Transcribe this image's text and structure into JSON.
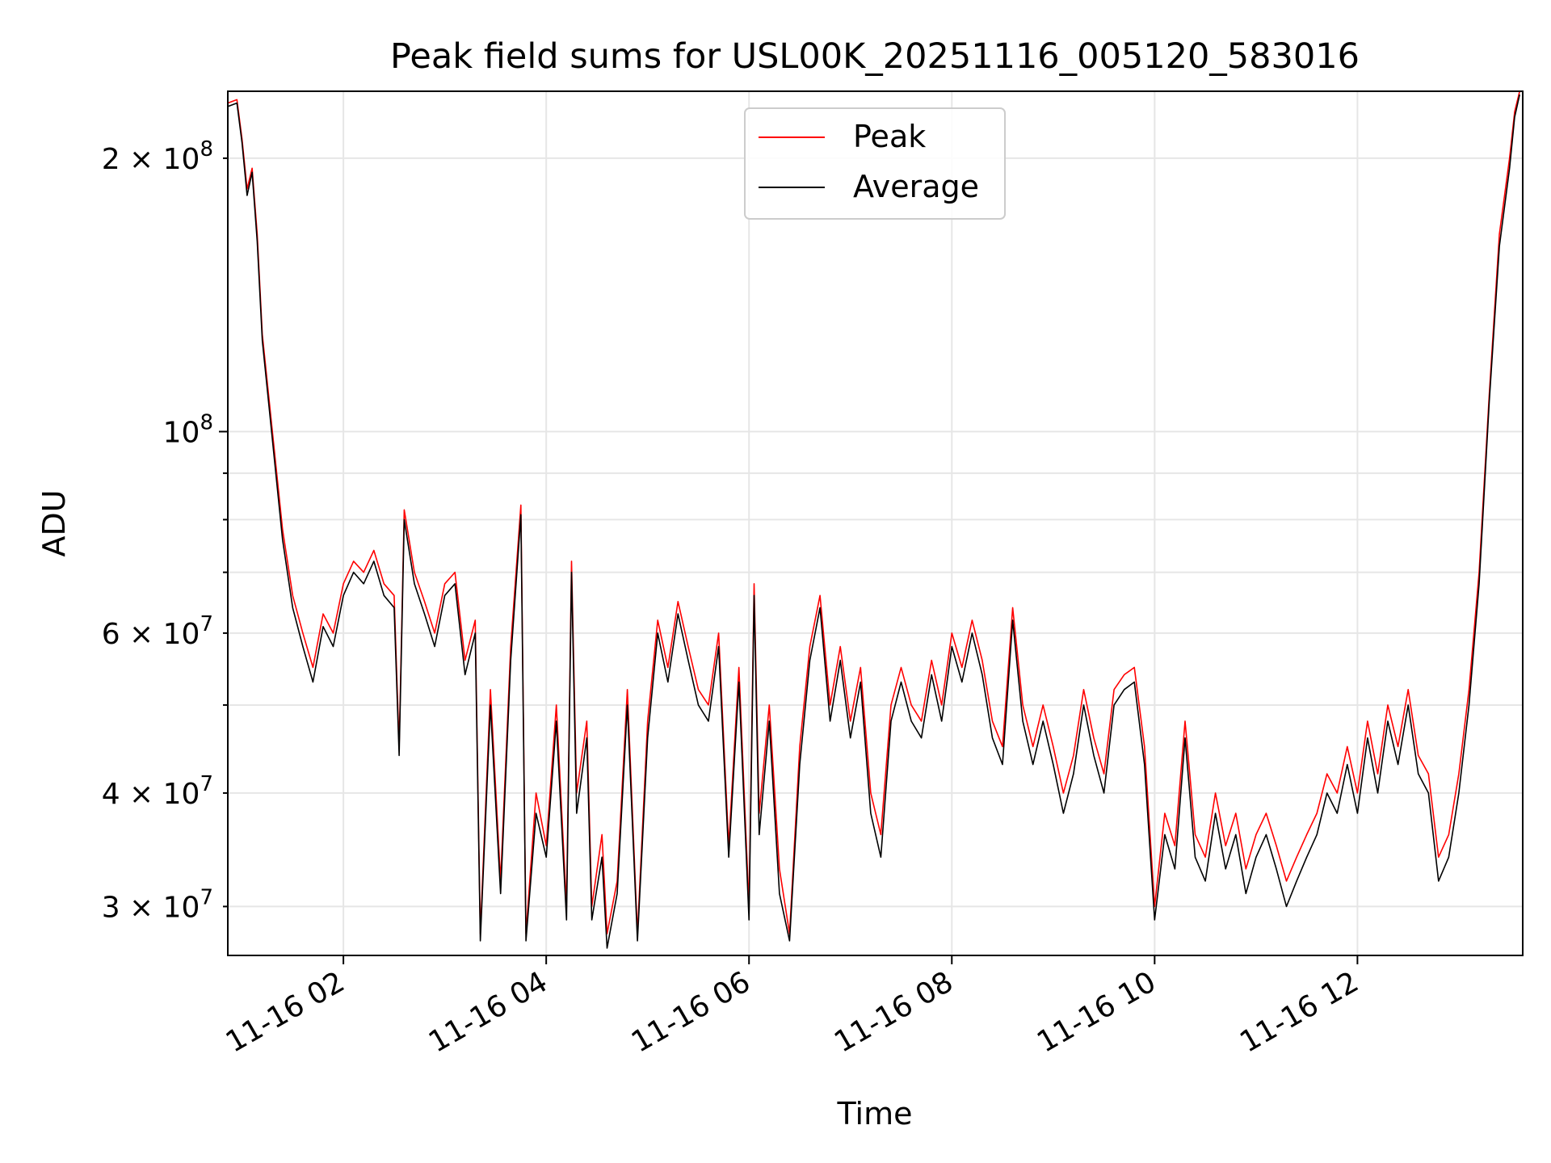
{
  "chart_data": {
    "type": "line",
    "title": "Peak field sums for USL00K_20251116_005120_583016",
    "xlabel": "Time",
    "ylabel": "ADU",
    "yscale": "log",
    "ylim": [
      26500000,
      237000000
    ],
    "xlim_hours": [
      0.86,
      13.63
    ],
    "grid": true,
    "legend_position": "upper center",
    "x_ticks": [
      {
        "value": 2,
        "label": "11-16 02"
      },
      {
        "value": 4,
        "label": "11-16 04"
      },
      {
        "value": 6,
        "label": "11-16 06"
      },
      {
        "value": 8,
        "label": "11-16 08"
      },
      {
        "value": 10,
        "label": "11-16 10"
      },
      {
        "value": 12,
        "label": "11-16 12"
      }
    ],
    "y_major_ticks": [
      {
        "value": 100000000,
        "base": "10",
        "exp": "8"
      }
    ],
    "y_minor_ticks": [
      {
        "value": 30000000,
        "mant": "3",
        "base": "10",
        "exp": "7"
      },
      {
        "value": 40000000,
        "mant": "4",
        "base": "10",
        "exp": "7"
      },
      {
        "value": 60000000,
        "mant": "6",
        "base": "10",
        "exp": "7"
      },
      {
        "value": 200000000,
        "mant": "2",
        "base": "10",
        "exp": "8"
      }
    ],
    "y_unlabeled_minor_ticks": [
      50000000,
      70000000,
      80000000,
      90000000
    ],
    "series": [
      {
        "name": "Peak",
        "color": "#ff0000",
        "points": [
          [
            0.86,
            230
          ],
          [
            0.95,
            232
          ],
          [
            1.0,
            210
          ],
          [
            1.05,
            185
          ],
          [
            1.1,
            195
          ],
          [
            1.15,
            165
          ],
          [
            1.2,
            128
          ],
          [
            1.3,
            100
          ],
          [
            1.4,
            78
          ],
          [
            1.5,
            66
          ],
          [
            1.6,
            60
          ],
          [
            1.7,
            55
          ],
          [
            1.8,
            63
          ],
          [
            1.9,
            60
          ],
          [
            2.0,
            68
          ],
          [
            2.1,
            72
          ],
          [
            2.2,
            70
          ],
          [
            2.3,
            74
          ],
          [
            2.4,
            68
          ],
          [
            2.5,
            66
          ],
          [
            2.55,
            45
          ],
          [
            2.6,
            82
          ],
          [
            2.7,
            70
          ],
          [
            2.8,
            65
          ],
          [
            2.9,
            60
          ],
          [
            3.0,
            68
          ],
          [
            3.1,
            70
          ],
          [
            3.2,
            56
          ],
          [
            3.3,
            62
          ],
          [
            3.35,
            28
          ],
          [
            3.45,
            52
          ],
          [
            3.55,
            32
          ],
          [
            3.65,
            58
          ],
          [
            3.75,
            83
          ],
          [
            3.8,
            28
          ],
          [
            3.9,
            40
          ],
          [
            4.0,
            35
          ],
          [
            4.1,
            50
          ],
          [
            4.2,
            30
          ],
          [
            4.25,
            72
          ],
          [
            4.3,
            40
          ],
          [
            4.4,
            48
          ],
          [
            4.45,
            30
          ],
          [
            4.55,
            36
          ],
          [
            4.6,
            28
          ],
          [
            4.7,
            32
          ],
          [
            4.8,
            52
          ],
          [
            4.9,
            28
          ],
          [
            5.0,
            48
          ],
          [
            5.1,
            62
          ],
          [
            5.2,
            55
          ],
          [
            5.3,
            65
          ],
          [
            5.4,
            58
          ],
          [
            5.5,
            52
          ],
          [
            5.6,
            50
          ],
          [
            5.7,
            60
          ],
          [
            5.8,
            35
          ],
          [
            5.9,
            55
          ],
          [
            6.0,
            30
          ],
          [
            6.05,
            68
          ],
          [
            6.1,
            38
          ],
          [
            6.2,
            50
          ],
          [
            6.3,
            33
          ],
          [
            6.4,
            28
          ],
          [
            6.5,
            45
          ],
          [
            6.6,
            58
          ],
          [
            6.7,
            66
          ],
          [
            6.8,
            50
          ],
          [
            6.9,
            58
          ],
          [
            7.0,
            48
          ],
          [
            7.1,
            55
          ],
          [
            7.2,
            40
          ],
          [
            7.3,
            36
          ],
          [
            7.4,
            50
          ],
          [
            7.5,
            55
          ],
          [
            7.6,
            50
          ],
          [
            7.7,
            48
          ],
          [
            7.8,
            56
          ],
          [
            7.9,
            50
          ],
          [
            8.0,
            60
          ],
          [
            8.1,
            55
          ],
          [
            8.2,
            62
          ],
          [
            8.3,
            56
          ],
          [
            8.4,
            48
          ],
          [
            8.5,
            45
          ],
          [
            8.6,
            64
          ],
          [
            8.7,
            50
          ],
          [
            8.8,
            45
          ],
          [
            8.9,
            50
          ],
          [
            9.0,
            45
          ],
          [
            9.1,
            40
          ],
          [
            9.2,
            44
          ],
          [
            9.3,
            52
          ],
          [
            9.4,
            46
          ],
          [
            9.5,
            42
          ],
          [
            9.6,
            52
          ],
          [
            9.7,
            54
          ],
          [
            9.8,
            55
          ],
          [
            9.9,
            45
          ],
          [
            10.0,
            30
          ],
          [
            10.1,
            38
          ],
          [
            10.2,
            35
          ],
          [
            10.3,
            48
          ],
          [
            10.4,
            36
          ],
          [
            10.5,
            34
          ],
          [
            10.6,
            40
          ],
          [
            10.7,
            35
          ],
          [
            10.8,
            38
          ],
          [
            10.9,
            33
          ],
          [
            11.0,
            36
          ],
          [
            11.1,
            38
          ],
          [
            11.2,
            35
          ],
          [
            11.3,
            32
          ],
          [
            11.4,
            34
          ],
          [
            11.5,
            36
          ],
          [
            11.6,
            38
          ],
          [
            11.7,
            42
          ],
          [
            11.8,
            40
          ],
          [
            11.9,
            45
          ],
          [
            12.0,
            40
          ],
          [
            12.1,
            48
          ],
          [
            12.2,
            42
          ],
          [
            12.3,
            50
          ],
          [
            12.4,
            45
          ],
          [
            12.5,
            52
          ],
          [
            12.6,
            44
          ],
          [
            12.7,
            42
          ],
          [
            12.8,
            34
          ],
          [
            12.9,
            36
          ],
          [
            13.0,
            42
          ],
          [
            13.1,
            52
          ],
          [
            13.2,
            70
          ],
          [
            13.3,
            110
          ],
          [
            13.4,
            165
          ],
          [
            13.5,
            200
          ],
          [
            13.55,
            225
          ],
          [
            13.6,
            237
          ]
        ]
      },
      {
        "name": "Average",
        "color": "#000000",
        "points": [
          [
            0.86,
            228
          ],
          [
            0.95,
            230
          ],
          [
            1.0,
            208
          ],
          [
            1.05,
            182
          ],
          [
            1.1,
            193
          ],
          [
            1.15,
            162
          ],
          [
            1.2,
            126
          ],
          [
            1.3,
            98
          ],
          [
            1.4,
            76
          ],
          [
            1.5,
            64
          ],
          [
            1.6,
            58
          ],
          [
            1.7,
            53
          ],
          [
            1.8,
            61
          ],
          [
            1.9,
            58
          ],
          [
            2.0,
            66
          ],
          [
            2.1,
            70
          ],
          [
            2.2,
            68
          ],
          [
            2.3,
            72
          ],
          [
            2.4,
            66
          ],
          [
            2.5,
            64
          ],
          [
            2.55,
            44
          ],
          [
            2.6,
            80
          ],
          [
            2.7,
            68
          ],
          [
            2.8,
            63
          ],
          [
            2.9,
            58
          ],
          [
            3.0,
            66
          ],
          [
            3.1,
            68
          ],
          [
            3.2,
            54
          ],
          [
            3.3,
            60
          ],
          [
            3.35,
            27.5
          ],
          [
            3.45,
            50
          ],
          [
            3.55,
            31
          ],
          [
            3.65,
            56
          ],
          [
            3.75,
            81
          ],
          [
            3.8,
            27.5
          ],
          [
            3.9,
            38
          ],
          [
            4.0,
            34
          ],
          [
            4.1,
            48
          ],
          [
            4.2,
            29
          ],
          [
            4.25,
            70
          ],
          [
            4.3,
            38
          ],
          [
            4.4,
            46
          ],
          [
            4.45,
            29
          ],
          [
            4.55,
            34
          ],
          [
            4.6,
            27
          ],
          [
            4.7,
            31
          ],
          [
            4.8,
            50
          ],
          [
            4.9,
            27.5
          ],
          [
            5.0,
            46
          ],
          [
            5.1,
            60
          ],
          [
            5.2,
            53
          ],
          [
            5.3,
            63
          ],
          [
            5.4,
            56
          ],
          [
            5.5,
            50
          ],
          [
            5.6,
            48
          ],
          [
            5.7,
            58
          ],
          [
            5.8,
            34
          ],
          [
            5.9,
            53
          ],
          [
            6.0,
            29
          ],
          [
            6.05,
            66
          ],
          [
            6.1,
            36
          ],
          [
            6.2,
            48
          ],
          [
            6.3,
            31
          ],
          [
            6.4,
            27.5
          ],
          [
            6.5,
            43
          ],
          [
            6.6,
            56
          ],
          [
            6.7,
            64
          ],
          [
            6.8,
            48
          ],
          [
            6.9,
            56
          ],
          [
            7.0,
            46
          ],
          [
            7.1,
            53
          ],
          [
            7.2,
            38
          ],
          [
            7.3,
            34
          ],
          [
            7.4,
            48
          ],
          [
            7.5,
            53
          ],
          [
            7.6,
            48
          ],
          [
            7.7,
            46
          ],
          [
            7.8,
            54
          ],
          [
            7.9,
            48
          ],
          [
            8.0,
            58
          ],
          [
            8.1,
            53
          ],
          [
            8.2,
            60
          ],
          [
            8.3,
            54
          ],
          [
            8.4,
            46
          ],
          [
            8.5,
            43
          ],
          [
            8.6,
            62
          ],
          [
            8.7,
            48
          ],
          [
            8.8,
            43
          ],
          [
            8.9,
            48
          ],
          [
            9.0,
            43
          ],
          [
            9.1,
            38
          ],
          [
            9.2,
            42
          ],
          [
            9.3,
            50
          ],
          [
            9.4,
            44
          ],
          [
            9.5,
            40
          ],
          [
            9.6,
            50
          ],
          [
            9.7,
            52
          ],
          [
            9.8,
            53
          ],
          [
            9.9,
            43
          ],
          [
            10.0,
            29
          ],
          [
            10.1,
            36
          ],
          [
            10.2,
            33
          ],
          [
            10.3,
            46
          ],
          [
            10.4,
            34
          ],
          [
            10.5,
            32
          ],
          [
            10.6,
            38
          ],
          [
            10.7,
            33
          ],
          [
            10.8,
            36
          ],
          [
            10.9,
            31
          ],
          [
            11.0,
            34
          ],
          [
            11.1,
            36
          ],
          [
            11.2,
            33
          ],
          [
            11.3,
            30
          ],
          [
            11.4,
            32
          ],
          [
            11.5,
            34
          ],
          [
            11.6,
            36
          ],
          [
            11.7,
            40
          ],
          [
            11.8,
            38
          ],
          [
            11.9,
            43
          ],
          [
            12.0,
            38
          ],
          [
            12.1,
            46
          ],
          [
            12.2,
            40
          ],
          [
            12.3,
            48
          ],
          [
            12.4,
            43
          ],
          [
            12.5,
            50
          ],
          [
            12.6,
            42
          ],
          [
            12.7,
            40
          ],
          [
            12.8,
            32
          ],
          [
            12.9,
            34
          ],
          [
            13.0,
            40
          ],
          [
            13.1,
            50
          ],
          [
            13.2,
            68
          ],
          [
            13.3,
            108
          ],
          [
            13.4,
            160
          ],
          [
            13.5,
            195
          ],
          [
            13.55,
            222
          ],
          [
            13.6,
            235
          ]
        ]
      }
    ],
    "value_unit_note": "values in units of 1e6 ADU",
    "y_multiplier": 1000000
  }
}
